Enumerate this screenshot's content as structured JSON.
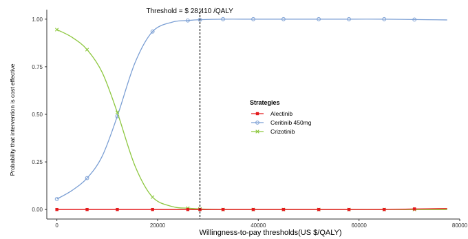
{
  "chart_data": {
    "type": "line",
    "title": "",
    "xlabel": "Willingness-to-pay thresholds(US $/QALY)",
    "ylabel": "Probability that intervention is cost effective",
    "xlim": [
      -2000,
      80000
    ],
    "ylim": [
      -0.05,
      1.05
    ],
    "x_ticks": [
      0,
      20000,
      40000,
      60000,
      80000
    ],
    "x_tick_labels": [
      "0",
      "20000",
      "40000",
      "60000",
      "80000"
    ],
    "y_ticks": [
      0,
      0.25,
      0.5,
      0.75,
      1.0
    ],
    "y_tick_labels": [
      "0.00",
      "0.25",
      "0.50",
      "0.75",
      "1.00"
    ],
    "grid": false,
    "legend": {
      "title": "Strategies",
      "position": "right-center"
    },
    "threshold": {
      "x": 28410,
      "label": "Threshold = $ 28,410 /QALY"
    },
    "series": [
      {
        "name": "Alectinib",
        "color": "#e41a1c",
        "marker": "square",
        "x": [
          0,
          3000,
          6000,
          9000,
          12000,
          15500,
          19000,
          23000,
          26000,
          28410,
          33000,
          39000,
          45000,
          52000,
          58000,
          65000,
          71000,
          77500
        ],
        "y": [
          0.0,
          0.0,
          0.0,
          0.0,
          0.0,
          0.0,
          0.0,
          0.0,
          0.0,
          0.0,
          0.0,
          0.0,
          0.0,
          0.0,
          0.0,
          0.0,
          0.003,
          0.005
        ]
      },
      {
        "name": "Ceritinib 450mg",
        "color": "#7b9fd4",
        "marker": "circle",
        "x": [
          0,
          3000,
          6000,
          9000,
          12000,
          15500,
          19000,
          23000,
          26000,
          28410,
          33000,
          39000,
          45000,
          52000,
          58000,
          65000,
          71000,
          77500
        ],
        "y": [
          0.055,
          0.1,
          0.165,
          0.28,
          0.49,
          0.77,
          0.935,
          0.985,
          0.993,
          0.997,
          1.0,
          1.0,
          1.0,
          1.0,
          1.0,
          1.0,
          0.998,
          0.996
        ]
      },
      {
        "name": "Crizotinib",
        "color": "#8dc73f",
        "marker": "x",
        "x": [
          0,
          3000,
          6000,
          9000,
          12000,
          15500,
          19000,
          23000,
          26000,
          28410,
          33000,
          39000,
          45000,
          52000,
          58000,
          65000,
          71000,
          77500
        ],
        "y": [
          0.945,
          0.905,
          0.84,
          0.72,
          0.51,
          0.23,
          0.065,
          0.015,
          0.007,
          0.003,
          0.0,
          0.0,
          0.0,
          0.0,
          0.0,
          0.0,
          0.0,
          0.0
        ]
      }
    ],
    "marker_x": [
      0,
      6000,
      12000,
      19000,
      26000,
      28410,
      33000,
      39000,
      45000,
      52000,
      58000,
      65000,
      71000
    ]
  }
}
